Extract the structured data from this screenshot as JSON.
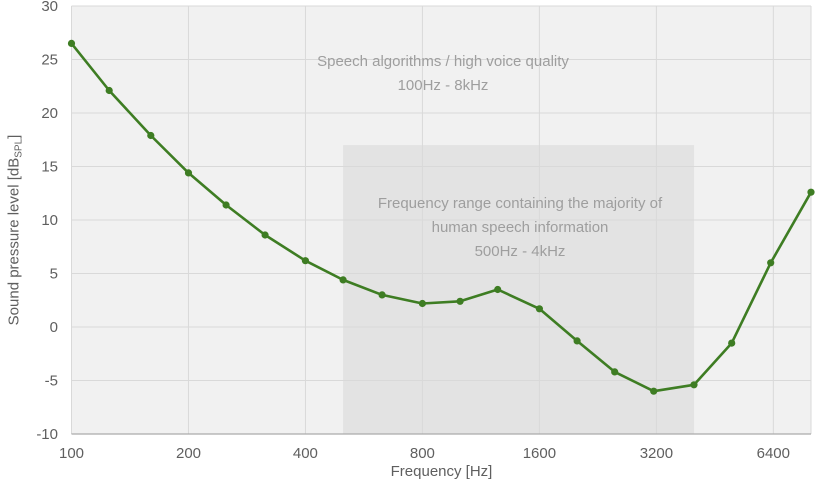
{
  "chart_data": {
    "type": "line",
    "title": "",
    "xlabel": "Frequency [Hz]",
    "ylabel_prefix": "Sound pressure level [dB",
    "ylabel_sub": "SPL",
    "ylabel_suffix": "]",
    "x_scale": "log",
    "xlim": [
      100,
      8000
    ],
    "ylim": [
      -10,
      30
    ],
    "x_ticks": [
      100,
      200,
      400,
      800,
      1600,
      3200,
      6400
    ],
    "y_ticks": [
      -10,
      -5,
      0,
      5,
      10,
      15,
      20,
      25,
      30
    ],
    "grid": true,
    "legend": "none",
    "series": [
      {
        "x": [
          100,
          125,
          160,
          200,
          250,
          315,
          400,
          500,
          630,
          800,
          1000,
          1250,
          1600,
          2000,
          2500,
          3150,
          4000,
          5000,
          6300,
          8000
        ],
        "y": [
          26.5,
          22.1,
          17.9,
          14.4,
          11.4,
          8.6,
          6.2,
          4.4,
          3.0,
          2.2,
          2.4,
          3.5,
          1.7,
          -1.3,
          -4.2,
          -6.0,
          -5.4,
          -1.5,
          6.0,
          12.6
        ]
      }
    ],
    "shaded_band": {
      "x_from": 500,
      "x_to": 4000,
      "y_from": -10,
      "y_to": 17
    },
    "annotations": [
      {
        "lines": [
          "Speech algorithms / high voice quality",
          "100Hz - 8kHz"
        ]
      },
      {
        "lines": [
          "Frequency range containing the majority of",
          "human speech information",
          "500Hz - 4kHz"
        ]
      }
    ]
  },
  "colors": {
    "line": "#3e7d23",
    "marker": "#3e7d23",
    "plot_background": "#f1f1f1",
    "band_fill": "#e3e3e3",
    "gridline": "#d9d9d9",
    "axis_line": "#ababab",
    "tick_text": "#5f5f5f",
    "annotation_text": "#9e9e9e"
  }
}
